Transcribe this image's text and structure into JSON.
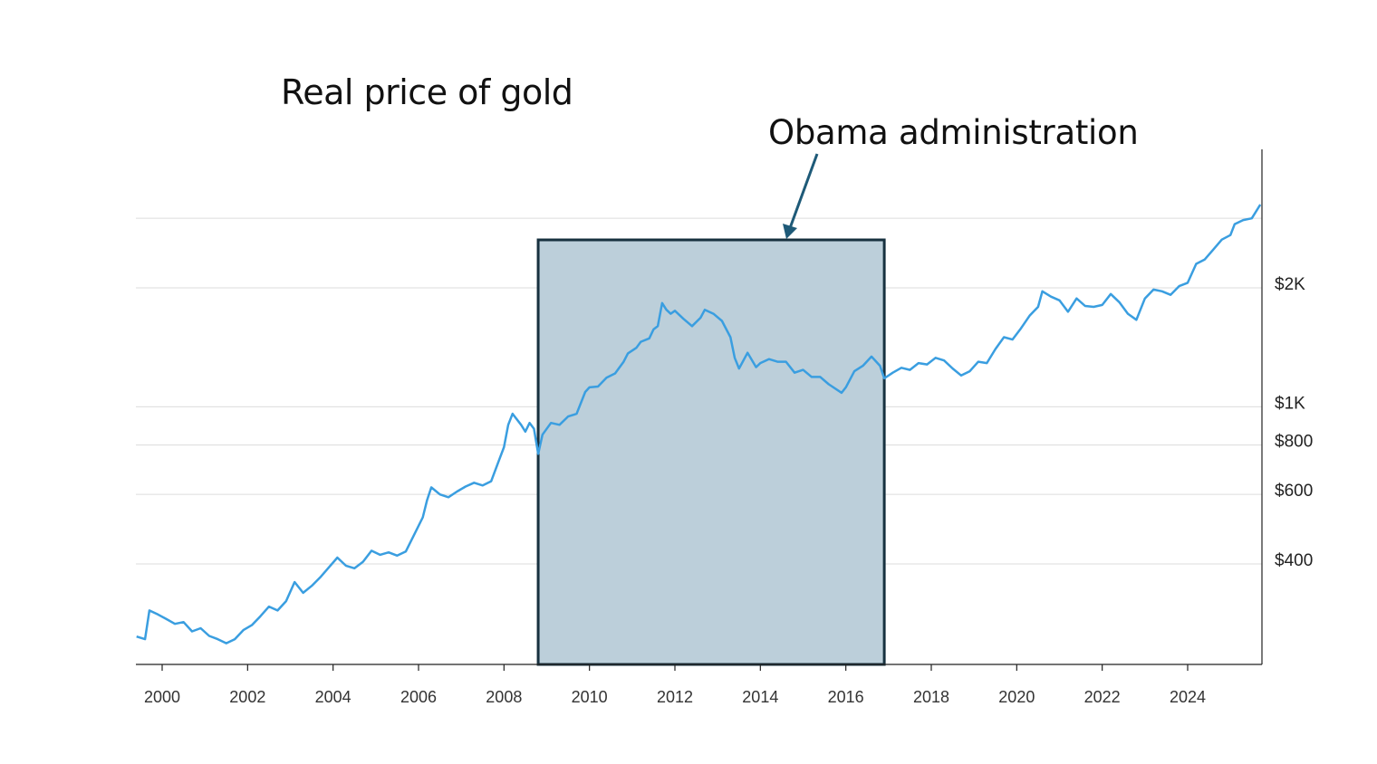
{
  "chart_data": {
    "type": "line",
    "title": "Real price of gold",
    "xlabel": "",
    "ylabel": "",
    "y_scale": "log",
    "xlim": [
      1999.4,
      2025.8
    ],
    "ylim": [
      240,
      3250
    ],
    "grid": "horizontal",
    "y_ticks": [
      {
        "value": 400,
        "label": "$400"
      },
      {
        "value": 600,
        "label": "$600"
      },
      {
        "value": 800,
        "label": "$800"
      },
      {
        "value": 1000,
        "label": "$1K"
      },
      {
        "value": 2000,
        "label": "$2K"
      },
      {
        "value": 3000,
        "label": ""
      }
    ],
    "x_ticks": [
      2000,
      2002,
      2004,
      2006,
      2008,
      2010,
      2012,
      2014,
      2016,
      2018,
      2020,
      2022,
      2024
    ],
    "series": [
      {
        "color": "#3a9ee0",
        "points": [
          [
            1999.4,
            262
          ],
          [
            1999.6,
            258
          ],
          [
            1999.7,
            305
          ],
          [
            1999.9,
            298
          ],
          [
            2000.1,
            290
          ],
          [
            2000.3,
            282
          ],
          [
            2000.5,
            285
          ],
          [
            2000.7,
            270
          ],
          [
            2000.9,
            275
          ],
          [
            2001.1,
            263
          ],
          [
            2001.3,
            258
          ],
          [
            2001.5,
            252
          ],
          [
            2001.7,
            258
          ],
          [
            2001.9,
            272
          ],
          [
            2002.1,
            280
          ],
          [
            2002.3,
            295
          ],
          [
            2002.5,
            312
          ],
          [
            2002.7,
            305
          ],
          [
            2002.9,
            322
          ],
          [
            2003.1,
            360
          ],
          [
            2003.3,
            338
          ],
          [
            2003.5,
            352
          ],
          [
            2003.7,
            370
          ],
          [
            2003.9,
            392
          ],
          [
            2004.1,
            415
          ],
          [
            2004.3,
            396
          ],
          [
            2004.5,
            390
          ],
          [
            2004.7,
            405
          ],
          [
            2004.9,
            432
          ],
          [
            2005.1,
            422
          ],
          [
            2005.3,
            428
          ],
          [
            2005.5,
            420
          ],
          [
            2005.7,
            430
          ],
          [
            2005.9,
            475
          ],
          [
            2006.1,
            525
          ],
          [
            2006.2,
            580
          ],
          [
            2006.3,
            625
          ],
          [
            2006.5,
            600
          ],
          [
            2006.7,
            590
          ],
          [
            2006.9,
            610
          ],
          [
            2007.1,
            628
          ],
          [
            2007.3,
            642
          ],
          [
            2007.5,
            632
          ],
          [
            2007.7,
            648
          ],
          [
            2007.9,
            740
          ],
          [
            2008.0,
            790
          ],
          [
            2008.1,
            900
          ],
          [
            2008.2,
            960
          ],
          [
            2008.4,
            900
          ],
          [
            2008.5,
            865
          ],
          [
            2008.6,
            910
          ],
          [
            2008.7,
            880
          ],
          [
            2008.8,
            760
          ],
          [
            2008.9,
            850
          ],
          [
            2009.1,
            910
          ],
          [
            2009.3,
            900
          ],
          [
            2009.5,
            945
          ],
          [
            2009.7,
            960
          ],
          [
            2009.9,
            1090
          ],
          [
            2010.0,
            1120
          ],
          [
            2010.2,
            1125
          ],
          [
            2010.4,
            1185
          ],
          [
            2010.6,
            1215
          ],
          [
            2010.8,
            1300
          ],
          [
            2010.9,
            1365
          ],
          [
            2011.1,
            1410
          ],
          [
            2011.2,
            1460
          ],
          [
            2011.4,
            1490
          ],
          [
            2011.5,
            1570
          ],
          [
            2011.6,
            1600
          ],
          [
            2011.7,
            1830
          ],
          [
            2011.8,
            1760
          ],
          [
            2011.9,
            1720
          ],
          [
            2012.0,
            1750
          ],
          [
            2012.2,
            1670
          ],
          [
            2012.4,
            1600
          ],
          [
            2012.6,
            1680
          ],
          [
            2012.7,
            1760
          ],
          [
            2012.9,
            1720
          ],
          [
            2013.1,
            1650
          ],
          [
            2013.3,
            1500
          ],
          [
            2013.4,
            1330
          ],
          [
            2013.5,
            1250
          ],
          [
            2013.7,
            1370
          ],
          [
            2013.9,
            1260
          ],
          [
            2014.0,
            1290
          ],
          [
            2014.2,
            1320
          ],
          [
            2014.4,
            1300
          ],
          [
            2014.6,
            1300
          ],
          [
            2014.8,
            1220
          ],
          [
            2015.0,
            1240
          ],
          [
            2015.2,
            1190
          ],
          [
            2015.4,
            1190
          ],
          [
            2015.6,
            1140
          ],
          [
            2015.9,
            1085
          ],
          [
            2016.0,
            1120
          ],
          [
            2016.2,
            1230
          ],
          [
            2016.4,
            1270
          ],
          [
            2016.6,
            1340
          ],
          [
            2016.8,
            1270
          ],
          [
            2016.9,
            1180
          ],
          [
            2017.1,
            1220
          ],
          [
            2017.3,
            1255
          ],
          [
            2017.5,
            1240
          ],
          [
            2017.7,
            1290
          ],
          [
            2017.9,
            1280
          ],
          [
            2018.1,
            1330
          ],
          [
            2018.3,
            1310
          ],
          [
            2018.5,
            1250
          ],
          [
            2018.7,
            1200
          ],
          [
            2018.9,
            1230
          ],
          [
            2019.1,
            1300
          ],
          [
            2019.3,
            1290
          ],
          [
            2019.5,
            1400
          ],
          [
            2019.7,
            1500
          ],
          [
            2019.9,
            1480
          ],
          [
            2020.1,
            1580
          ],
          [
            2020.3,
            1700
          ],
          [
            2020.5,
            1790
          ],
          [
            2020.6,
            1960
          ],
          [
            2020.8,
            1900
          ],
          [
            2021.0,
            1860
          ],
          [
            2021.2,
            1740
          ],
          [
            2021.4,
            1880
          ],
          [
            2021.6,
            1800
          ],
          [
            2021.8,
            1790
          ],
          [
            2022.0,
            1810
          ],
          [
            2022.2,
            1930
          ],
          [
            2022.4,
            1840
          ],
          [
            2022.6,
            1720
          ],
          [
            2022.8,
            1660
          ],
          [
            2023.0,
            1880
          ],
          [
            2023.2,
            1980
          ],
          [
            2023.4,
            1960
          ],
          [
            2023.6,
            1920
          ],
          [
            2023.8,
            2020
          ],
          [
            2024.0,
            2060
          ],
          [
            2024.2,
            2300
          ],
          [
            2024.4,
            2360
          ],
          [
            2024.6,
            2500
          ],
          [
            2024.8,
            2650
          ],
          [
            2025.0,
            2720
          ],
          [
            2025.1,
            2900
          ],
          [
            2025.3,
            2970
          ],
          [
            2025.5,
            3000
          ],
          [
            2025.7,
            3250
          ]
        ]
      }
    ],
    "shaded_region": {
      "x_start": 2008.8,
      "x_end": 2016.9,
      "label": "Obama administration"
    }
  }
}
